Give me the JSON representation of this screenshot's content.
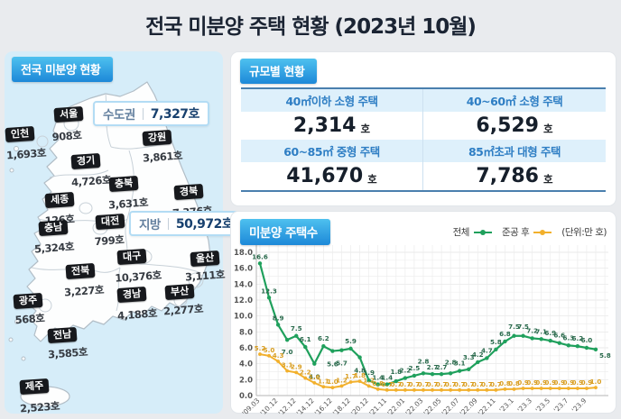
{
  "title": "전국 미분양 주택 현황 (2023년 10월)",
  "map_panel": {
    "header": "전국 미분양 현황",
    "callouts": [
      {
        "label": "수도권",
        "value": "7,327호"
      },
      {
        "label": "지방",
        "value": "50,972호"
      }
    ],
    "regions": [
      {
        "name": "서울",
        "value": "908호"
      },
      {
        "name": "인천",
        "value": "1,693호"
      },
      {
        "name": "경기",
        "value": "4,726호"
      },
      {
        "name": "강원",
        "value": "3,861호"
      },
      {
        "name": "충북",
        "value": "3,631호"
      },
      {
        "name": "세종",
        "value": "126호"
      },
      {
        "name": "대전",
        "value": "799호"
      },
      {
        "name": "충남",
        "value": "5,324호"
      },
      {
        "name": "경북",
        "value": "7,376호"
      },
      {
        "name": "대구",
        "value": "10,376호"
      },
      {
        "name": "울산",
        "value": "3,111호"
      },
      {
        "name": "전북",
        "value": "3,227호"
      },
      {
        "name": "경남",
        "value": "4,188호"
      },
      {
        "name": "부산",
        "value": "2,277호"
      },
      {
        "name": "광주",
        "value": "568호"
      },
      {
        "name": "전남",
        "value": "3,585호"
      },
      {
        "name": "제주",
        "value": "2,523호"
      }
    ]
  },
  "size_panel": {
    "header": "규모별 현황",
    "cells": [
      {
        "label": "40㎡이하 소형 주택",
        "value": "2,314",
        "unit": "호"
      },
      {
        "label": "40~60㎡ 소형 주택",
        "value": "6,529",
        "unit": "호"
      },
      {
        "label": "60~85㎡ 중형 주택",
        "value": "41,670",
        "unit": "호"
      },
      {
        "label": "85㎡초과 대형 주택",
        "value": "7,786",
        "unit": "호"
      }
    ]
  },
  "chart_panel": {
    "header": "미분양 주택수",
    "unit_note": "(단위:만 호)"
  },
  "chart_data": {
    "type": "line",
    "title": "미분양 주택수",
    "unit": "만 호",
    "legend_position": "top-right",
    "grid": true,
    "ylim": [
      0,
      18
    ],
    "y_ticks": [
      0.0,
      2.0,
      4.0,
      6.0,
      8.0,
      10.0,
      12.0,
      14.0,
      16.0,
      18.0
    ],
    "x_tick_labels": [
      "'09.03",
      "'10.12",
      "'12.12",
      "'14.12",
      "'16.12",
      "'18.12",
      "'20.12",
      "'21.11",
      "'22.01",
      "'22.03",
      "'22.05",
      "'22.07",
      "'22.09",
      "'22.11",
      "'23.1",
      "'23.3",
      "'23.5",
      "'23.7",
      "'23.9"
    ],
    "tick_every": 2,
    "series": [
      {
        "name": "전체",
        "color": "#1fa05c",
        "label_color": "#2a6a4c",
        "values": [
          16.6,
          12.3,
          8.9,
          7.0,
          7.5,
          6.1,
          4.0,
          6.2,
          5.6,
          5.7,
          5.9,
          4.8,
          1.9,
          1.4,
          1.4,
          1.8,
          2.2,
          2.5,
          2.8,
          2.7,
          2.7,
          2.8,
          3.1,
          3.3,
          4.2,
          4.7,
          5.8,
          6.8,
          7.5,
          7.5,
          7.2,
          7.1,
          6.9,
          6.6,
          6.3,
          6.2,
          6.0,
          5.8
        ]
      },
      {
        "name": "준공 후",
        "color": "#f2b02c",
        "label_color": "#d99e22",
        "values": [
          5.2,
          5.0,
          4.3,
          3.1,
          2.9,
          2.2,
          1.6,
          1.1,
          1.0,
          1.2,
          1.7,
          1.8,
          1.2,
          0.8,
          0.7,
          0.7,
          0.7,
          0.7,
          0.7,
          0.7,
          0.7,
          0.7,
          0.7,
          0.7,
          0.7,
          0.7,
          0.7,
          0.8,
          0.8,
          0.9,
          0.9,
          0.9,
          0.9,
          0.9,
          0.9,
          0.9,
          0.9,
          1.0
        ]
      }
    ]
  }
}
